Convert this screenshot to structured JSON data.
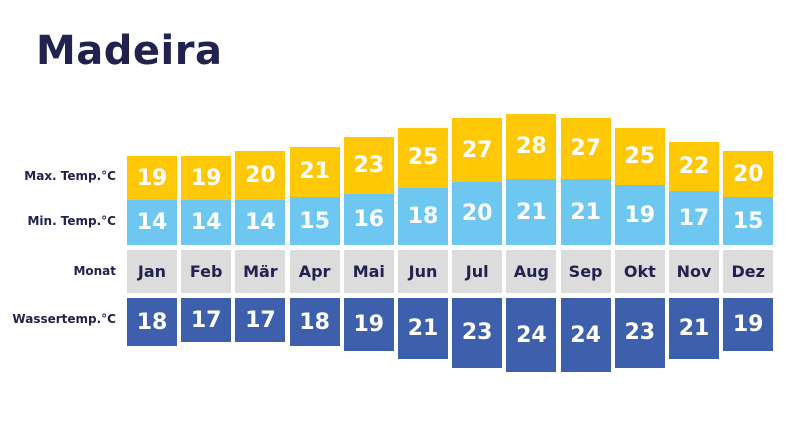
{
  "chart_data": {
    "type": "table",
    "title": "Madeira",
    "row_labels": {
      "max": "Max. Temp.°C",
      "min": "Min. Temp.°C",
      "month": "Monat",
      "water": "Wassertemp.°C"
    },
    "categories": [
      "Jan",
      "Feb",
      "Mär",
      "Apr",
      "Mai",
      "Jun",
      "Jul",
      "Aug",
      "Sep",
      "Okt",
      "Nov",
      "Dez"
    ],
    "series": [
      {
        "name": "Max. Temp.°C",
        "values": [
          19,
          19,
          20,
          21,
          23,
          25,
          27,
          28,
          27,
          25,
          22,
          20
        ]
      },
      {
        "name": "Min. Temp.°C",
        "values": [
          14,
          14,
          14,
          15,
          16,
          18,
          20,
          21,
          21,
          19,
          17,
          15
        ]
      },
      {
        "name": "Wassertemp.°C",
        "values": [
          18,
          17,
          17,
          18,
          19,
          21,
          23,
          24,
          24,
          23,
          21,
          19
        ]
      }
    ],
    "colors": {
      "max": "#ffc807",
      "min": "#6ec7f1",
      "month": "#dcdcdc",
      "water": "#3e5fab",
      "text": "#22224f"
    }
  }
}
